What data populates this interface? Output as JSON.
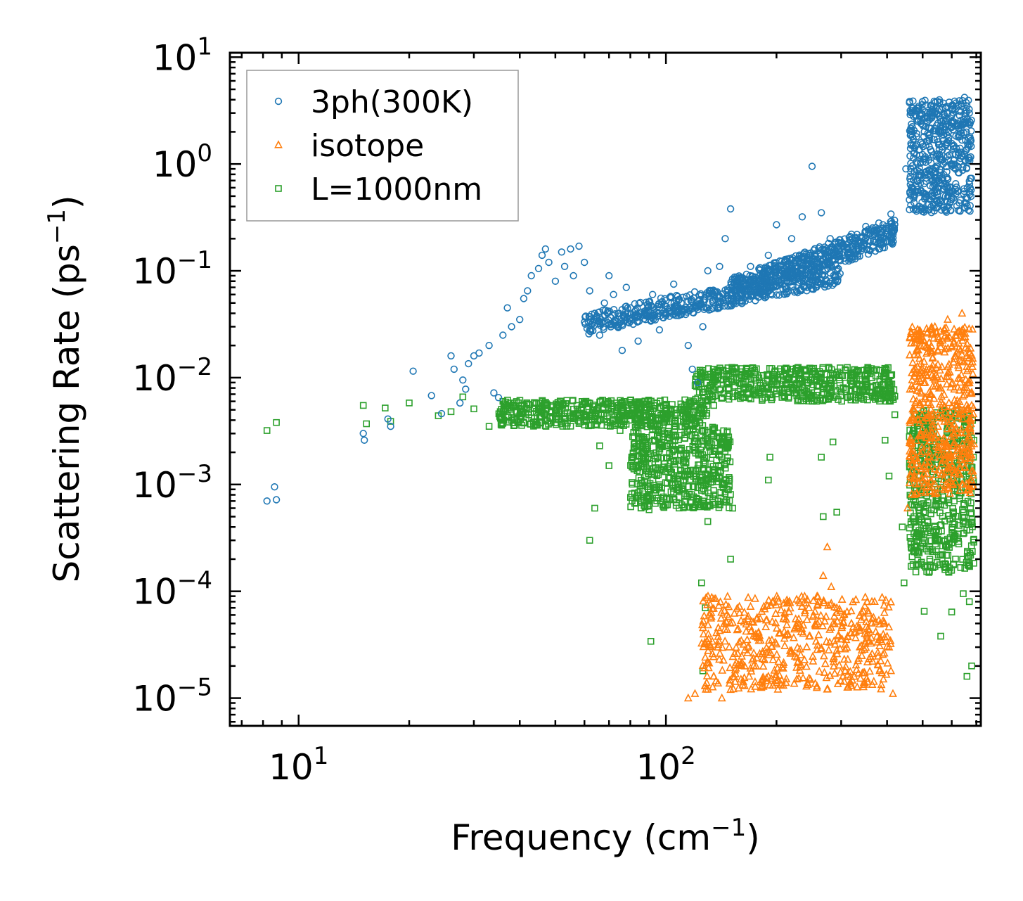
{
  "chart_data": {
    "type": "scatter",
    "title": "",
    "xlabel": "Frequency (cm",
    "xlabel_exp": "−1",
    "xlabel_tail": ")",
    "ylabel": "Scattering Rate (ps",
    "ylabel_exp": "−1",
    "ylabel_tail": ")",
    "xscale": "log",
    "yscale": "log",
    "xlim": [
      6.5,
      720
    ],
    "ylim": [
      5.5e-06,
      11
    ],
    "x_ticks": [
      {
        "value": 10,
        "base": "10",
        "exp": "1"
      },
      {
        "value": 100,
        "base": "10",
        "exp": "2"
      }
    ],
    "y_ticks": [
      {
        "value": 10,
        "base": "10",
        "exp": "1"
      },
      {
        "value": 1,
        "base": "10",
        "exp": "0"
      },
      {
        "value": 0.1,
        "base": "10",
        "exp": "−1"
      },
      {
        "value": 0.01,
        "base": "10",
        "exp": "−2"
      },
      {
        "value": 0.001,
        "base": "10",
        "exp": "−3"
      },
      {
        "value": 0.0001,
        "base": "10",
        "exp": "−4"
      },
      {
        "value": 1e-05,
        "base": "10",
        "exp": "−5"
      }
    ],
    "legend_position": "top-left",
    "series": [
      {
        "name": "3ph(300K)",
        "marker": "circle",
        "color": "#1f77b4",
        "points": [
          [
            8.2,
            0.0007
          ],
          [
            8.6,
            0.00095
          ],
          [
            8.7,
            0.00072
          ],
          [
            15,
            0.003
          ],
          [
            15.1,
            0.0026
          ],
          [
            17.5,
            0.0041
          ],
          [
            17.8,
            0.0035
          ],
          [
            20.5,
            0.0115
          ],
          [
            23,
            0.0068
          ],
          [
            24.5,
            0.0046
          ],
          [
            26,
            0.016
          ],
          [
            26.5,
            0.012
          ],
          [
            27.5,
            0.0058
          ],
          [
            28,
            0.0095
          ],
          [
            28.5,
            0.0078
          ],
          [
            29,
            0.0135
          ],
          [
            30,
            0.016
          ],
          [
            31,
            0.017
          ],
          [
            33,
            0.02
          ],
          [
            34,
            0.0072
          ],
          [
            35,
            0.0065
          ],
          [
            36,
            0.025
          ],
          [
            37,
            0.045
          ],
          [
            38,
            0.03
          ],
          [
            40,
            0.035
          ],
          [
            41,
            0.055
          ],
          [
            42,
            0.065
          ],
          [
            43,
            0.09
          ],
          [
            45,
            0.105
          ],
          [
            46,
            0.14
          ],
          [
            47,
            0.16
          ],
          [
            48,
            0.12
          ],
          [
            50,
            0.08
          ],
          [
            52,
            0.15
          ],
          [
            53,
            0.11
          ],
          [
            55,
            0.16
          ],
          [
            56,
            0.09
          ],
          [
            58,
            0.17
          ],
          [
            60,
            0.12
          ],
          [
            62,
            0.065
          ],
          [
            64,
            0.04
          ],
          [
            66,
            0.025
          ],
          [
            68,
            0.05
          ],
          [
            70,
            0.09
          ],
          [
            72,
            0.06
          ],
          [
            74,
            0.03
          ],
          [
            76,
            0.018
          ],
          [
            78,
            0.07
          ],
          [
            80,
            0.045
          ],
          [
            84,
            0.022
          ],
          [
            88,
            0.035
          ],
          [
            92,
            0.06
          ],
          [
            96,
            0.028
          ],
          [
            100,
            0.04
          ],
          [
            105,
            0.075
          ],
          [
            110,
            0.05
          ],
          [
            115,
            0.02
          ],
          [
            118,
            0.012
          ],
          [
            122,
            0.009
          ],
          [
            126,
            0.03
          ],
          [
            130,
            0.1
          ],
          [
            135,
            0.06
          ],
          [
            140,
            0.11
          ],
          [
            145,
            0.2
          ],
          [
            150,
            0.38
          ],
          [
            155,
            0.08
          ],
          [
            160,
            0.06
          ],
          [
            170,
            0.11
          ],
          [
            180,
            0.08
          ],
          [
            190,
            0.14
          ],
          [
            200,
            0.27
          ],
          [
            210,
            0.12
          ],
          [
            220,
            0.2
          ],
          [
            235,
            0.32
          ],
          [
            250,
            0.95
          ],
          [
            265,
            0.35
          ],
          [
            280,
            0.2
          ],
          [
            300,
            0.18
          ],
          [
            320,
            0.22
          ],
          [
            350,
            0.26
          ],
          [
            380,
            0.28
          ],
          [
            410,
            0.34
          ],
          [
            450,
            0.9
          ],
          [
            470,
            0.6
          ],
          [
            490,
            0.4
          ],
          [
            510,
            1.5
          ],
          [
            530,
            3.5
          ],
          [
            550,
            1.2
          ],
          [
            580,
            0.6
          ],
          [
            600,
            2.2
          ],
          [
            630,
            1.8
          ],
          [
            650,
            4.2
          ],
          [
            670,
            3.0
          ]
        ],
        "bands": [
          {
            "x": [
              60,
              300
            ],
            "y": [
              0.025,
              0.12
            ],
            "growth": 1.0
          },
          {
            "x": [
              150,
              420
            ],
            "y": [
              0.05,
              0.3
            ],
            "growth": 1.0
          },
          {
            "x": [
              460,
              680
            ],
            "y": [
              0.35,
              4.0
            ],
            "growth": 0.0
          }
        ]
      },
      {
        "name": "isotope",
        "marker": "triangle",
        "color": "#ff7f0e",
        "points": [
          [
            115,
            1e-05
          ],
          [
            120,
            1.1e-05
          ],
          [
            128,
            1.3e-05
          ],
          [
            135,
            1.6e-05
          ],
          [
            142,
            1e-05
          ],
          [
            150,
            1.2e-05
          ],
          [
            160,
            1.5e-05
          ],
          [
            170,
            1.9e-05
          ],
          [
            180,
            2.6e-05
          ],
          [
            190,
            1.6e-05
          ],
          [
            200,
            3.2e-05
          ],
          [
            215,
            4e-05
          ],
          [
            230,
            5.5e-05
          ],
          [
            245,
            7e-05
          ],
          [
            258,
            9e-05
          ],
          [
            268,
            0.00014
          ],
          [
            275,
            0.00026
          ],
          [
            282,
            0.00011
          ],
          [
            292,
            7e-05
          ],
          [
            305,
            6e-05
          ],
          [
            320,
            5e-05
          ],
          [
            345,
            6.5e-05
          ],
          [
            370,
            8e-05
          ],
          [
            392,
            5e-05
          ],
          [
            405,
            3e-05
          ],
          [
            410,
            1.8e-05
          ],
          [
            415,
            1.1e-05
          ],
          [
            455,
            0.0006
          ],
          [
            470,
            0.004
          ],
          [
            490,
            0.011
          ],
          [
            505,
            0.022
          ],
          [
            520,
            0.012
          ],
          [
            540,
            0.03
          ],
          [
            560,
            0.008
          ],
          [
            585,
            0.035
          ],
          [
            610,
            0.015
          ],
          [
            640,
            0.04
          ],
          [
            665,
            0.012
          ],
          [
            680,
            0.0055
          ],
          [
            690,
            0.0024
          ]
        ],
        "bands": [
          {
            "x": [
              125,
              410
            ],
            "y": [
              1.2e-05,
              9e-05
            ],
            "growth": 0.0
          },
          {
            "x": [
              460,
              690
            ],
            "y": [
              0.0008,
              0.03
            ],
            "growth": 0.0
          }
        ]
      },
      {
        "name": "L=1000nm",
        "marker": "square",
        "color": "#2ca02c",
        "points": [
          [
            8.2,
            0.0032
          ],
          [
            8.7,
            0.0038
          ],
          [
            15,
            0.0055
          ],
          [
            15.3,
            0.0037
          ],
          [
            17.2,
            0.0052
          ],
          [
            17.8,
            0.0039
          ],
          [
            20,
            0.0058
          ],
          [
            24,
            0.0044
          ],
          [
            26,
            0.0048
          ],
          [
            28,
            0.0066
          ],
          [
            30,
            0.0051
          ],
          [
            33,
            0.0035
          ],
          [
            36,
            0.006
          ],
          [
            40,
            0.0044
          ],
          [
            45,
            0.0058
          ],
          [
            50,
            0.0049
          ],
          [
            55,
            0.0042
          ],
          [
            60,
            0.0036
          ],
          [
            62,
            0.0003
          ],
          [
            64,
            0.0006
          ],
          [
            66,
            0.0023
          ],
          [
            70,
            0.0015
          ],
          [
            75,
            0.0032
          ],
          [
            80,
            0.004
          ],
          [
            85,
            0.0009
          ],
          [
            90,
            0.00058
          ],
          [
            91,
            3.4e-05
          ],
          [
            92,
            0.0033
          ],
          [
            100,
            0.0045
          ],
          [
            110,
            0.005
          ],
          [
            120,
            0.0022
          ],
          [
            125,
            0.00012
          ],
          [
            126,
            1.8e-05
          ],
          [
            128,
            7e-05
          ],
          [
            130,
            0.00045
          ],
          [
            135,
            0.0055
          ],
          [
            140,
            0.0028
          ],
          [
            145,
            0.00085
          ],
          [
            150,
            0.0002
          ],
          [
            152,
            0.0006
          ],
          [
            160,
            0.007
          ],
          [
            170,
            0.0085
          ],
          [
            180,
            0.009
          ],
          [
            190,
            0.0011
          ],
          [
            192,
            0.0018
          ],
          [
            200,
            0.0075
          ],
          [
            215,
            0.0095
          ],
          [
            230,
            0.011
          ],
          [
            250,
            0.012
          ],
          [
            265,
            0.0018
          ],
          [
            268,
            0.0005
          ],
          [
            275,
            0.007
          ],
          [
            285,
            0.0025
          ],
          [
            292,
            0.00055
          ],
          [
            300,
            0.0105
          ],
          [
            320,
            0.011
          ],
          [
            350,
            0.0095
          ],
          [
            380,
            0.0075
          ],
          [
            395,
            0.0026
          ],
          [
            405,
            0.0012
          ],
          [
            420,
            0.0045
          ],
          [
            440,
            0.0004
          ],
          [
            445,
            0.00012
          ],
          [
            460,
            0.0028
          ],
          [
            480,
            0.0009
          ],
          [
            495,
            0.00018
          ],
          [
            505,
            6.5e-05
          ],
          [
            520,
            0.00015
          ],
          [
            540,
            0.0004
          ],
          [
            560,
            3.8e-05
          ],
          [
            575,
            0.00016
          ],
          [
            600,
            6.4e-05
          ],
          [
            620,
            0.00098
          ],
          [
            645,
            9.5e-05
          ],
          [
            660,
            1.6e-05
          ],
          [
            670,
            8e-05
          ],
          [
            680,
            2e-05
          ]
        ],
        "bands": [
          {
            "x": [
              35,
              130
            ],
            "y": [
              0.0035,
              0.0062
            ],
            "growth": 0.0
          },
          {
            "x": [
              80,
              150
            ],
            "y": [
              0.0006,
              0.0035
            ],
            "growth": 0.0
          },
          {
            "x": [
              120,
              420
            ],
            "y": [
              0.006,
              0.0125
            ],
            "growth": 0.0
          },
          {
            "x": [
              460,
              690
            ],
            "y": [
              0.00015,
              0.005
            ],
            "growth": 0.0
          }
        ]
      }
    ]
  }
}
